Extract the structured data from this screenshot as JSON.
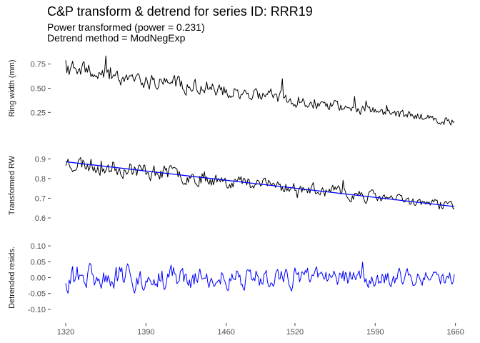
{
  "title": "C&P transform & detrend for series ID: RRR19",
  "subtitle_1": "Power transformed (power = 0.231)",
  "subtitle_2": "Detrend method = ModNegExp",
  "colors": {
    "raw": "#000000",
    "transformed": "#000000",
    "trend": "#0000ff",
    "residuals": "#0000ff",
    "tick": "#4d4d4d"
  },
  "chart_data": [
    {
      "type": "line",
      "ylabel": "Ring width (mm)",
      "xlim": [
        1320,
        1659
      ],
      "ylim": [
        0.12,
        0.88
      ],
      "yticks": [
        0.25,
        0.5,
        0.75
      ],
      "ytick_labels": [
        "0.25",
        "0.50",
        "0.75"
      ],
      "grid": false,
      "series": [
        {
          "role": "raw",
          "x_start": 1320,
          "x_end": 1659,
          "trend": 0.7,
          "trend_end": 0.16,
          "noise": 0.11,
          "seed": 19
        }
      ]
    },
    {
      "type": "line",
      "ylabel": "Transformed RW",
      "xlim": [
        1320,
        1659
      ],
      "ylim": [
        0.56,
        0.97
      ],
      "yticks": [
        0.6,
        0.7,
        0.8,
        0.9
      ],
      "ytick_labels": [
        "0.6",
        "0.7",
        "0.8",
        "0.9"
      ],
      "grid": false,
      "series": [
        {
          "role": "transformed",
          "x_start": 1320,
          "x_end": 1659,
          "trend": 0.885,
          "trend_end": 0.66,
          "noise": 0.055,
          "seed": 23
        },
        {
          "role": "trend",
          "x": [
            1320,
            1659
          ],
          "y": [
            0.885,
            0.658
          ]
        }
      ]
    },
    {
      "type": "line",
      "ylabel": "Detrended resids.",
      "xlabel": "",
      "xlim": [
        1320,
        1659
      ],
      "ylim": [
        -0.125,
        0.125
      ],
      "yticks": [
        -0.1,
        -0.05,
        0.0,
        0.05,
        0.1
      ],
      "ytick_labels": [
        "-0.10",
        "-0.05",
        "0.00",
        "0.05",
        "0.10"
      ],
      "xticks": [
        1320,
        1390,
        1460,
        1520,
        1590,
        1660
      ],
      "xtick_labels": [
        "1320",
        "1390",
        "1460",
        "1520",
        "1590",
        "1660"
      ],
      "grid": false,
      "series": [
        {
          "role": "residuals",
          "x_start": 1320,
          "x_end": 1659,
          "trend": 0.0,
          "trend_end": 0.0,
          "noise": 0.05,
          "seed": 31
        }
      ]
    }
  ]
}
